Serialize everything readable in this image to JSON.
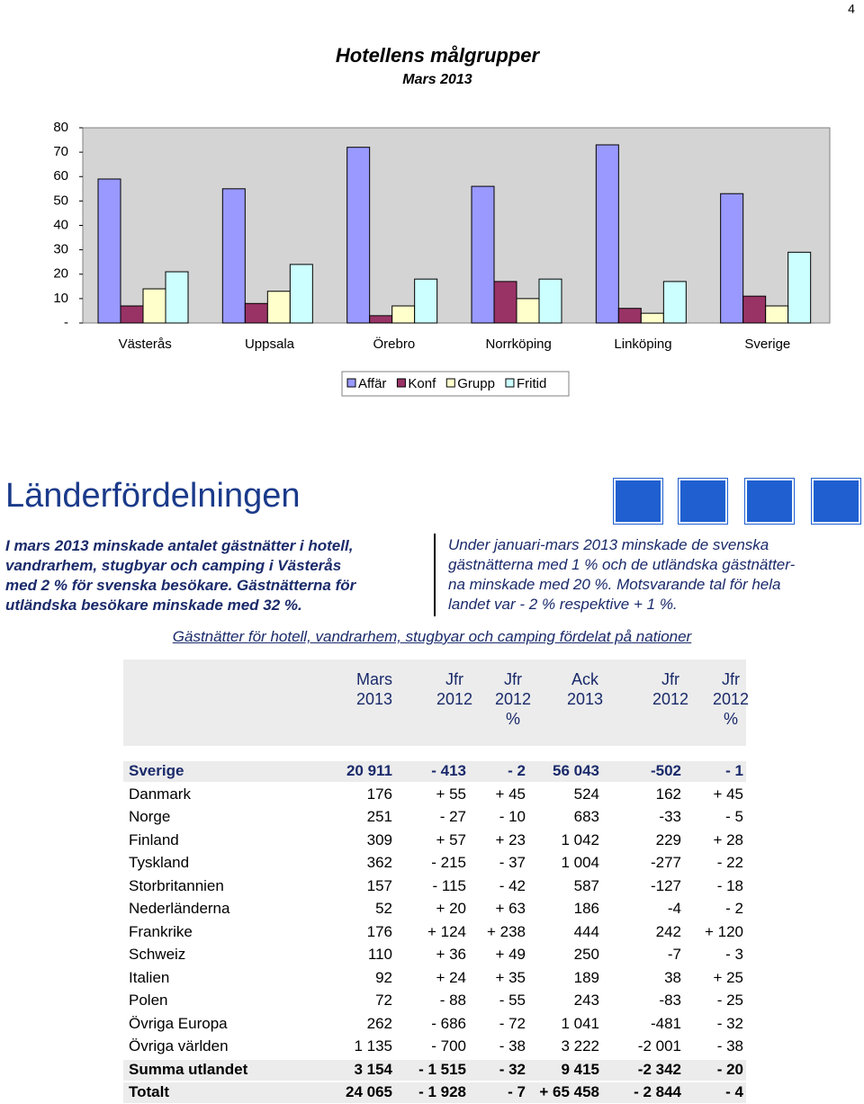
{
  "page_number": "4",
  "chart_data": {
    "type": "bar",
    "title": "Hotellens målgrupper",
    "subtitle": "Mars 2013",
    "categories": [
      "Västerås",
      "Uppsala",
      "Örebro",
      "Norrköping",
      "Linköping",
      "Sverige"
    ],
    "series": [
      {
        "name": "Affär",
        "color": "#9999ff",
        "values": [
          59,
          55,
          72,
          56,
          73,
          53
        ]
      },
      {
        "name": "Konf",
        "color": "#993366",
        "values": [
          7,
          8,
          3,
          17,
          6,
          11
        ]
      },
      {
        "name": "Grupp",
        "color": "#ffffcc",
        "values": [
          14,
          13,
          7,
          10,
          4,
          7
        ]
      },
      {
        "name": "Fritid",
        "color": "#ccffff",
        "values": [
          21,
          24,
          18,
          18,
          17,
          29
        ]
      }
    ],
    "ylim": [
      0,
      80
    ],
    "yticks": [
      {
        "value": 0,
        "label": "-"
      },
      10,
      20,
      30,
      40,
      50,
      60,
      70,
      80
    ],
    "legend": "bottom"
  },
  "section": {
    "title": "Länderfördelningen",
    "left_text": [
      "I mars 2013 minskade antalet gästnätter i hotell,",
      "vandrarhem, stugbyar och camping i Västerås",
      "med 2 % för svenska besökare. Gästnätterna för",
      "utländska besökare minskade med 32 %."
    ],
    "right_text": [
      "Under januari-mars 2013 minskade de svenska",
      "gästnätterna med 1 % och de utländska gästnätter-",
      "na minskade med 20 %. Motsvarande tal för hela",
      "landet var - 2 % respektive + 1 %."
    ]
  },
  "table": {
    "caption": "Gästnätter för hotell, vandrarhem, stugbyar och camping fördelat på nationer",
    "headers": [
      [
        "Mars",
        "2013"
      ],
      [
        "Jfr",
        "2012"
      ],
      [
        "Jfr",
        "2012",
        "%"
      ],
      [
        "Ack",
        "2013"
      ],
      [
        "Jfr",
        "2012"
      ],
      [
        "Jfr",
        "2012",
        "%"
      ]
    ],
    "rows": [
      [
        "Sverige",
        "20 911",
        "- 413",
        "- 2",
        "56 043",
        "-502",
        "- 1"
      ],
      [
        "Danmark",
        "176",
        "+ 55",
        "+ 45",
        "524",
        "162",
        "+ 45"
      ],
      [
        "Norge",
        "251",
        "- 27",
        "- 10",
        "683",
        "-33",
        "- 5"
      ],
      [
        "Finland",
        "309",
        "+ 57",
        "+ 23",
        "1 042",
        "229",
        "+ 28"
      ],
      [
        "Tyskland",
        "362",
        "- 215",
        "- 37",
        "1 004",
        "-277",
        "- 22"
      ],
      [
        "Storbritannien",
        "157",
        "- 115",
        "- 42",
        "587",
        "-127",
        "- 18"
      ],
      [
        "Nederländerna",
        "52",
        "+ 20",
        "+ 63",
        "186",
        "-4",
        "- 2"
      ],
      [
        "Frankrike",
        "176",
        "+ 124",
        "+ 238",
        "444",
        "242",
        "+ 120"
      ],
      [
        "Schweiz",
        "110",
        "+ 36",
        "+ 49",
        "250",
        "-7",
        "- 3"
      ],
      [
        "Italien",
        "92",
        "+ 24",
        "+ 35",
        "189",
        "38",
        "+ 25"
      ],
      [
        "Polen",
        "72",
        "- 88",
        "- 55",
        "243",
        "-83",
        "- 25"
      ],
      [
        "Övriga Europa",
        "262",
        "- 686",
        "- 72",
        "1 041",
        "-481",
        "- 32"
      ],
      [
        "Övriga världen",
        "1 135",
        "- 700",
        "- 38",
        "3 222",
        "-2 001",
        "- 38"
      ],
      [
        "Summa utlandet",
        "3 154",
        "- 1 515",
        "- 32",
        "9 415",
        "-2 342",
        "- 20"
      ],
      [
        "Totalt",
        "24 065",
        "- 1 928",
        "- 7",
        "+ 65 458",
        "- 2 844",
        "- 4"
      ]
    ]
  }
}
